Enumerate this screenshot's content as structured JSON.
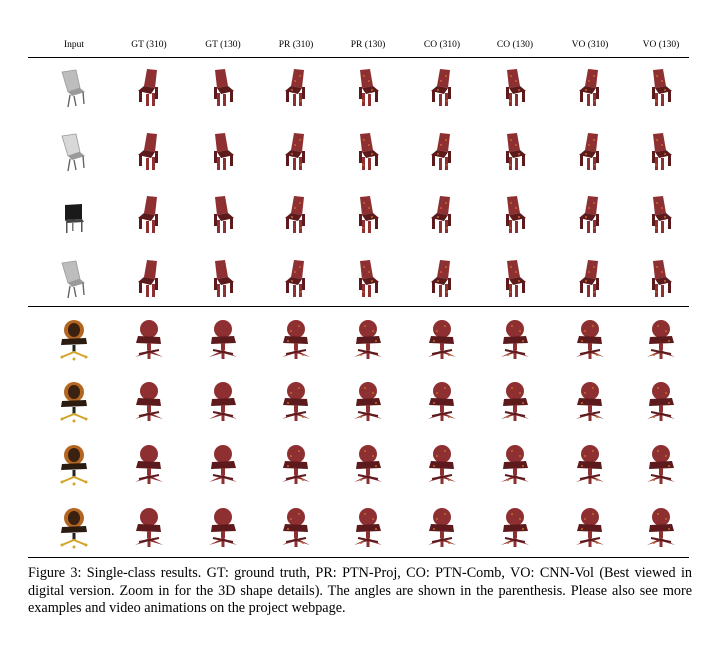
{
  "column_headers": [
    "Input",
    "GT (310)",
    "GT (130)",
    "PR (310)",
    "PR (130)",
    "CO (310)",
    "CO (130)",
    "VO (310)",
    "VO (130)"
  ],
  "row_groups": [
    {
      "category": "chair",
      "rows": [
        {
          "input": "grey-chair-icon"
        },
        {
          "input": "white-chair-icon"
        },
        {
          "input": "black-chair-icon"
        },
        {
          "input": "grey-chair-icon"
        }
      ]
    },
    {
      "category": "office-chair",
      "rows": [
        {
          "input": "office-chair-icon"
        },
        {
          "input": "office-chair-icon"
        },
        {
          "input": "office-chair-icon"
        },
        {
          "input": "office-chair-icon"
        }
      ]
    }
  ],
  "colors": {
    "shape_red": "#8e2f31",
    "shape_dark": "#5c1a1c",
    "rust": "#c06a2a",
    "input_grey": "#9a9a9a",
    "input_black": "#1a1a1a",
    "office_wood": "#b4651f"
  },
  "caption": "Figure 3: Single-class results. GT: ground truth, PR: PTN-Proj, CO: PTN-Comb, VO: CNN-Vol (Best viewed in digital version. Zoom in for the 3D shape details). The angles are shown in the parenthesis. Please also see more examples and video animations on the project webpage."
}
